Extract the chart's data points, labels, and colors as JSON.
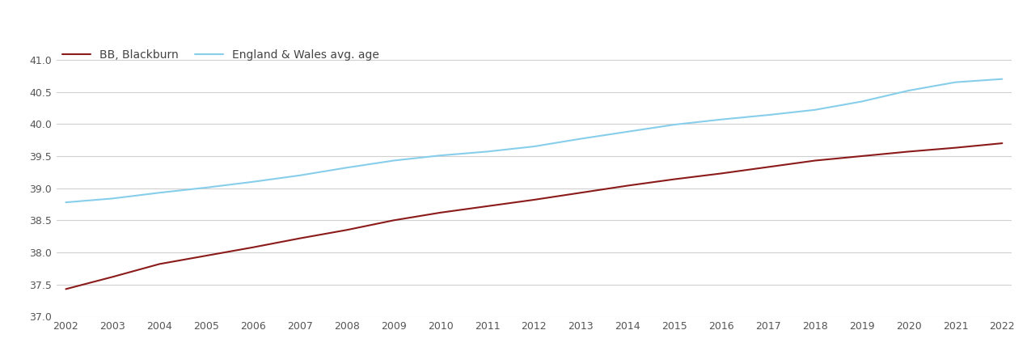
{
  "years": [
    2002,
    2003,
    2004,
    2005,
    2006,
    2007,
    2008,
    2009,
    2010,
    2011,
    2012,
    2013,
    2014,
    2015,
    2016,
    2017,
    2018,
    2019,
    2020,
    2021,
    2022
  ],
  "blackburn": [
    37.43,
    37.62,
    37.82,
    37.95,
    38.08,
    38.22,
    38.35,
    38.5,
    38.62,
    38.72,
    38.82,
    38.93,
    39.04,
    39.14,
    39.23,
    39.33,
    39.43,
    39.5,
    39.57,
    39.63,
    39.7
  ],
  "england_wales": [
    38.78,
    38.84,
    38.93,
    39.01,
    39.1,
    39.2,
    39.32,
    39.43,
    39.51,
    39.57,
    39.65,
    39.77,
    39.88,
    39.99,
    40.07,
    40.14,
    40.22,
    40.35,
    40.52,
    40.65,
    40.7
  ],
  "blackburn_color": "#8B1A1A",
  "england_wales_color": "#87CEEB",
  "background_color": "#ffffff",
  "grid_color": "#d0d0d0",
  "ylim": [
    37.0,
    41.25
  ],
  "yticks": [
    37.0,
    37.5,
    38.0,
    38.5,
    39.0,
    39.5,
    40.0,
    40.5,
    41.0
  ],
  "legend_blackburn": "BB, Blackburn",
  "legend_england_wales": "England & Wales avg. age",
  "line_width": 1.5,
  "tick_fontsize": 9,
  "legend_fontsize": 10
}
